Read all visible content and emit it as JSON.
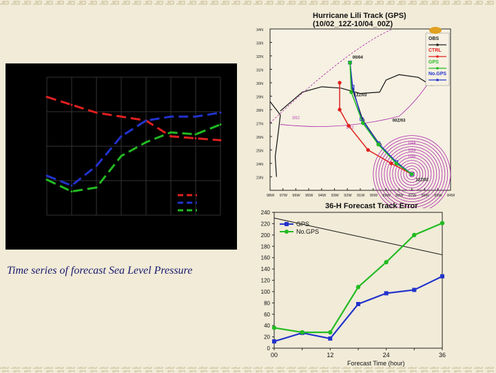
{
  "caption": "Time series of forecast Sea Level Pressure",
  "colors": {
    "background": "#f1ebd8",
    "ctrl": "#e02020",
    "gps": "#22bb22",
    "nogps": "#2233cc",
    "obs": "#222222",
    "contour": "#aa22aa"
  },
  "slp_chart": {
    "type": "line",
    "x": [
      0,
      1,
      2,
      3,
      4,
      5,
      6,
      7
    ],
    "series": [
      {
        "name": "red",
        "color": "#e02020",
        "values": [
          1020,
          1016,
          1012,
          1010,
          1008,
          1000,
          999,
          998
        ]
      },
      {
        "name": "blue",
        "color": "#2233cc",
        "values": [
          980,
          975,
          985,
          1000,
          1008,
          1010,
          1010,
          1012
        ]
      },
      {
        "name": "green",
        "color": "#22bb22",
        "values": [
          978,
          972,
          974,
          990,
          997,
          1002,
          1001,
          1006
        ]
      }
    ],
    "ylim": [
      960,
      1030
    ]
  },
  "track_map": {
    "title_line1": "Hurricane Lili Track (GPS)",
    "title_line2": "(10/02_12Z-10/04_00Z)",
    "lat_labels": [
      "34N",
      "33N",
      "32N",
      "31N",
      "30N",
      "29N",
      "28N",
      "27N",
      "26N",
      "25N",
      "24N",
      "23N"
    ],
    "lon_labels": [
      "98W",
      "97W",
      "96W",
      "95W",
      "94W",
      "93W",
      "92W",
      "91W",
      "90W",
      "89W",
      "88W",
      "87W",
      "86W",
      "85W",
      "84W"
    ],
    "legend": [
      {
        "label": "OBS",
        "color": "#222222"
      },
      {
        "label": "CTRL",
        "color": "#e02020"
      },
      {
        "label": "GPS",
        "color": "#22bb22"
      },
      {
        "label": "No.GPS",
        "color": "#2233cc"
      }
    ],
    "annotations": [
      "00/04",
      "12Z/03",
      "00Z/03",
      "12Z/02"
    ],
    "contour_labels": [
      "1012",
      "1012",
      "1008",
      "1004",
      "1000"
    ],
    "tracks": {
      "obs": {
        "lon": [
          -87.0,
          -88.2,
          -89.5,
          -90.8,
          -91.6,
          -91.8
        ],
        "lat": [
          23.2,
          24.0,
          25.4,
          27.2,
          29.5,
          31.5
        ]
      },
      "ctrl": {
        "lon": [
          -87.0,
          -88.6,
          -90.4,
          -91.9,
          -92.6,
          -92.6
        ],
        "lat": [
          23.2,
          24.0,
          25.0,
          26.8,
          28.0,
          30.0
        ]
      },
      "gps": {
        "lon": [
          -87.0,
          -88.2,
          -89.6,
          -90.8,
          -91.7,
          -91.8
        ],
        "lat": [
          23.2,
          24.0,
          25.4,
          27.0,
          29.3,
          31.5
        ]
      },
      "nogps": {
        "lon": [
          -87.0,
          -88.2,
          -89.6,
          -90.9,
          -91.6,
          -91.8
        ],
        "lat": [
          23.2,
          24.1,
          25.5,
          27.3,
          29.7,
          31.5
        ]
      }
    },
    "lon_range": [
      -98,
      -84
    ],
    "lat_range": [
      22,
      34
    ]
  },
  "chart_data": {
    "type": "line",
    "title": "36-H Forecast Track Error",
    "xlabel": "Forecast Time (hour)",
    "ylabel": "",
    "x": [
      0,
      6,
      12,
      18,
      24,
      30,
      36
    ],
    "xticks": [
      0,
      12,
      24,
      36
    ],
    "xtick_labels": [
      "00",
      "12",
      "24",
      "36"
    ],
    "yticks": [
      0,
      20,
      40,
      60,
      80,
      100,
      120,
      140,
      160,
      180,
      200,
      220,
      240
    ],
    "ylim": [
      0,
      240
    ],
    "series": [
      {
        "name": "GPS",
        "color": "#2233cc",
        "marker": "square",
        "values": [
          12,
          27,
          17,
          78,
          97,
          103,
          127
        ]
      },
      {
        "name": "No.GPS",
        "color": "#22bb22",
        "marker": "circle",
        "values": [
          36,
          28,
          28,
          108,
          152,
          200,
          221
        ]
      }
    ],
    "reference_line": {
      "x": [
        0,
        36
      ],
      "y": [
        230,
        165
      ]
    },
    "legend_position": "top-left"
  }
}
